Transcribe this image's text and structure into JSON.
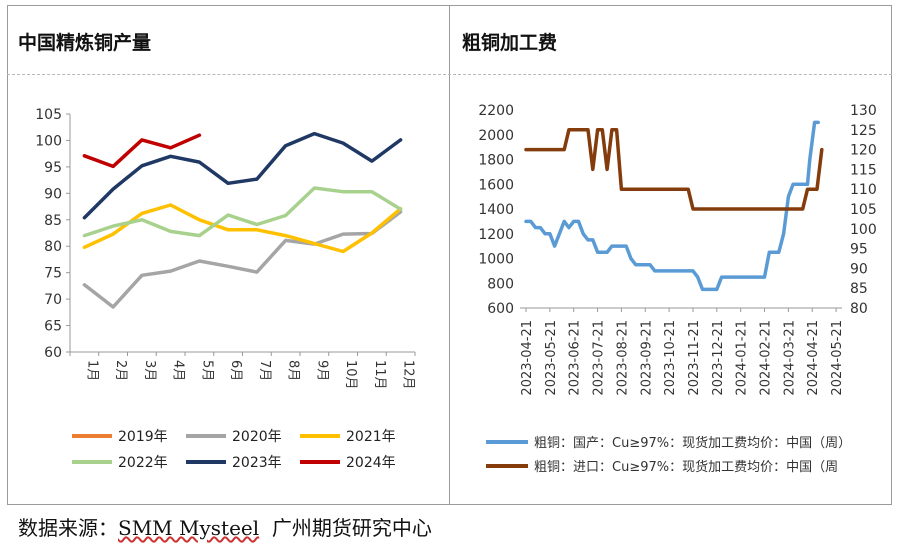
{
  "source": {
    "prefix": "数据来源：",
    "brand": "SMM Mysteel",
    "suffix": "广州期货研究中心"
  },
  "chart_data": [
    {
      "type": "line",
      "title": "中国精炼铜产量",
      "categories": [
        "1月",
        "2月",
        "3月",
        "4月",
        "5月",
        "6月",
        "7月",
        "8月",
        "9月",
        "10月",
        "11月",
        "12月"
      ],
      "ylim": [
        60,
        105
      ],
      "yticks": [
        60,
        65,
        70,
        75,
        80,
        85,
        90,
        95,
        100,
        105
      ],
      "series": [
        {
          "name": "2019年",
          "color": "#ED7D31",
          "values": [
            null,
            null,
            null,
            null,
            null,
            null,
            null,
            null,
            null,
            null,
            null,
            null
          ]
        },
        {
          "name": "2020年",
          "color": "#A5A5A5",
          "values": [
            72.7,
            68.5,
            74.5,
            75.3,
            77.2,
            76.2,
            75.1,
            81.1,
            80.4,
            82.3,
            82.4,
            86.5
          ]
        },
        {
          "name": "2021年",
          "color": "#FFC000",
          "values": [
            79.8,
            82.3,
            86.2,
            87.8,
            85,
            83.1,
            83.1,
            82,
            80.5,
            79,
            82.5,
            87.1
          ]
        },
        {
          "name": "2022年",
          "color": "#A9D18E",
          "values": [
            82,
            83.8,
            85,
            82.8,
            82,
            85.9,
            84.1,
            85.8,
            91,
            90.3,
            90.3,
            87
          ]
        },
        {
          "name": "2023年",
          "color": "#1F3864",
          "values": [
            85.4,
            90.8,
            95.2,
            97,
            95.9,
            91.9,
            92.7,
            99,
            101.3,
            99.5,
            96.1,
            100.1
          ]
        },
        {
          "name": "2024年",
          "color": "#C00000",
          "values": [
            97.1,
            95.1,
            100.1,
            98.6,
            101,
            null,
            null,
            null,
            null,
            null,
            null,
            null
          ]
        }
      ]
    },
    {
      "type": "line",
      "title": "粗铜加工费",
      "x_ticks": [
        "2023-04-21",
        "2023-05-21",
        "2023-06-21",
        "2023-07-21",
        "2023-08-21",
        "2023-09-21",
        "2023-10-21",
        "2023-11-21",
        "2023-12-21",
        "2024-01-21",
        "2024-02-21",
        "2024-03-21",
        "2024-04-21",
        "2024-05-21"
      ],
      "ylim_left": [
        600,
        2200
      ],
      "yticks_left": [
        600,
        800,
        1000,
        1200,
        1400,
        1600,
        1800,
        2000,
        2200
      ],
      "ylim_right": [
        80,
        130
      ],
      "yticks_right": [
        80,
        85,
        90,
        95,
        100,
        105,
        110,
        115,
        120,
        125,
        130
      ],
      "series": [
        {
          "name": "粗铜：国产：Cu≥97%：现货加工费均价：中国（周）",
          "axis": "left",
          "color": "#5B9BD5",
          "points": [
            [
              0,
              1300
            ],
            [
              0.2,
              1300
            ],
            [
              0.4,
              1250
            ],
            [
              0.6,
              1250
            ],
            [
              0.8,
              1200
            ],
            [
              1,
              1200
            ],
            [
              1.2,
              1100
            ],
            [
              1.4,
              1200
            ],
            [
              1.6,
              1300
            ],
            [
              1.8,
              1250
            ],
            [
              2,
              1300
            ],
            [
              2.2,
              1300
            ],
            [
              2.4,
              1200
            ],
            [
              2.6,
              1150
            ],
            [
              2.8,
              1150
            ],
            [
              3,
              1050
            ],
            [
              3.2,
              1050
            ],
            [
              3.4,
              1050
            ],
            [
              3.6,
              1100
            ],
            [
              3.8,
              1100
            ],
            [
              4,
              1100
            ],
            [
              4.2,
              1100
            ],
            [
              4.4,
              1000
            ],
            [
              4.6,
              950
            ],
            [
              4.8,
              950
            ],
            [
              5,
              950
            ],
            [
              5.2,
              950
            ],
            [
              5.4,
              900
            ],
            [
              5.6,
              900
            ],
            [
              5.8,
              900
            ],
            [
              6,
              900
            ],
            [
              6.2,
              900
            ],
            [
              6.4,
              900
            ],
            [
              6.6,
              900
            ],
            [
              6.8,
              900
            ],
            [
              7,
              900
            ],
            [
              7.2,
              850
            ],
            [
              7.4,
              750
            ],
            [
              7.6,
              750
            ],
            [
              7.8,
              750
            ],
            [
              8,
              750
            ],
            [
              8.2,
              850
            ],
            [
              8.4,
              850
            ],
            [
              8.6,
              850
            ],
            [
              8.8,
              850
            ],
            [
              9,
              850
            ],
            [
              9.2,
              850
            ],
            [
              9.4,
              850
            ],
            [
              9.6,
              850
            ],
            [
              9.8,
              850
            ],
            [
              10,
              850
            ],
            [
              10.2,
              1050
            ],
            [
              10.4,
              1050
            ],
            [
              10.6,
              1050
            ],
            [
              10.8,
              1200
            ],
            [
              11,
              1500
            ],
            [
              11.2,
              1600
            ],
            [
              11.4,
              1600
            ],
            [
              11.6,
              1600
            ],
            [
              11.8,
              1600
            ],
            [
              11.9,
              1800
            ],
            [
              12.1,
              2100
            ],
            [
              12.25,
              2100
            ]
          ]
        },
        {
          "name": "粗铜：进口：Cu≥97%：现货加工费均价：中国（周",
          "axis": "right",
          "color": "#843C0C",
          "points": [
            [
              0,
              120
            ],
            [
              0.4,
              120
            ],
            [
              0.8,
              120
            ],
            [
              1.2,
              120
            ],
            [
              1.6,
              120
            ],
            [
              1.8,
              125
            ],
            [
              2,
              125
            ],
            [
              2.4,
              125
            ],
            [
              2.6,
              125
            ],
            [
              2.8,
              115
            ],
            [
              3,
              125
            ],
            [
              3.2,
              125
            ],
            [
              3.4,
              115
            ],
            [
              3.6,
              125
            ],
            [
              3.8,
              125
            ],
            [
              4,
              110
            ],
            [
              4.4,
              110
            ],
            [
              4.8,
              110
            ],
            [
              5.2,
              110
            ],
            [
              5.6,
              110
            ],
            [
              6,
              110
            ],
            [
              6.4,
              110
            ],
            [
              6.8,
              110
            ],
            [
              7,
              105
            ],
            [
              7.4,
              105
            ],
            [
              7.8,
              105
            ],
            [
              8.2,
              105
            ],
            [
              8.6,
              105
            ],
            [
              9,
              105
            ],
            [
              9.4,
              105
            ],
            [
              9.8,
              105
            ],
            [
              10.2,
              105
            ],
            [
              10.6,
              105
            ],
            [
              11,
              105
            ],
            [
              11.4,
              105
            ],
            [
              11.6,
              105
            ],
            [
              11.8,
              110
            ],
            [
              12,
              110
            ],
            [
              12.2,
              110
            ],
            [
              12.4,
              120
            ]
          ]
        }
      ]
    }
  ]
}
